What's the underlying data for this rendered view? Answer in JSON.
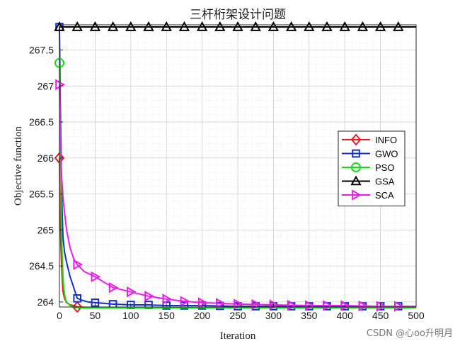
{
  "chart_data": {
    "type": "line",
    "title": "三杆桁架设计问题",
    "xlabel": "Iteration",
    "ylabel": "Objective function",
    "xlim": [
      0,
      500
    ],
    "ylim": [
      263.93,
      267.85
    ],
    "xticks": [
      "0",
      "50",
      "100",
      "150",
      "200",
      "250",
      "300",
      "350",
      "400",
      "450",
      "500"
    ],
    "yticks": [
      "264",
      "264.5",
      "265",
      "265.5",
      "266",
      "266.5",
      "267",
      "267.5"
    ],
    "grid": true,
    "minor_grid": true,
    "legend_position": "right",
    "series": [
      {
        "name": "INFO",
        "color": "#e8191b",
        "marker": "diamond",
        "x": [
          0,
          1,
          2,
          3,
          4,
          5,
          7,
          10,
          15,
          20,
          25,
          50,
          75,
          100,
          150,
          200,
          300,
          400,
          500
        ],
        "y": [
          266.0,
          265.3,
          264.8,
          264.5,
          264.3,
          264.15,
          264.05,
          263.99,
          263.96,
          263.95,
          263.93,
          263.92,
          263.92,
          263.92,
          263.92,
          263.92,
          263.92,
          263.92,
          263.92
        ]
      },
      {
        "name": "GWO",
        "color": "#1430c8",
        "marker": "square",
        "x": [
          0,
          1,
          2,
          3,
          4,
          5,
          7,
          10,
          15,
          20,
          25,
          30,
          40,
          50,
          75,
          100,
          125,
          150,
          200,
          250,
          300,
          400,
          500
        ],
        "y": [
          267.82,
          267.0,
          266.2,
          265.6,
          265.2,
          264.9,
          264.7,
          264.55,
          264.35,
          264.2,
          264.05,
          264.03,
          264.0,
          263.99,
          263.97,
          263.96,
          263.96,
          263.95,
          263.95,
          263.94,
          263.94,
          263.94,
          263.94
        ]
      },
      {
        "name": "PSO",
        "color": "#10e010",
        "marker": "circle",
        "x": [
          0,
          1,
          2,
          3,
          4,
          5,
          6,
          8,
          10,
          15,
          20,
          25,
          50,
          100,
          200,
          300,
          400,
          500
        ],
        "y": [
          267.32,
          266.5,
          265.6,
          265.0,
          264.6,
          264.35,
          264.2,
          264.05,
          264.0,
          263.95,
          263.93,
          263.92,
          263.92,
          263.92,
          263.92,
          263.92,
          263.92,
          263.92
        ]
      },
      {
        "name": "GSA",
        "color": "#000000",
        "marker": "triangle-up",
        "x": [
          0,
          500
        ],
        "y": [
          267.82,
          267.82
        ]
      },
      {
        "name": "SCA",
        "color": "#ee1aee",
        "marker": "triangle-right",
        "x": [
          0,
          1,
          2,
          3,
          5,
          7,
          10,
          15,
          20,
          25,
          35,
          50,
          75,
          100,
          125,
          150,
          175,
          200,
          250,
          300,
          350,
          400,
          450,
          500
        ],
        "y": [
          267.02,
          266.4,
          266.0,
          265.75,
          265.45,
          265.25,
          265.0,
          264.75,
          264.6,
          264.52,
          264.42,
          264.35,
          264.2,
          264.14,
          264.08,
          264.04,
          264.01,
          263.99,
          263.97,
          263.96,
          263.95,
          263.95,
          263.94,
          263.94
        ]
      }
    ]
  },
  "watermark": "CSDN @心oo升明月"
}
